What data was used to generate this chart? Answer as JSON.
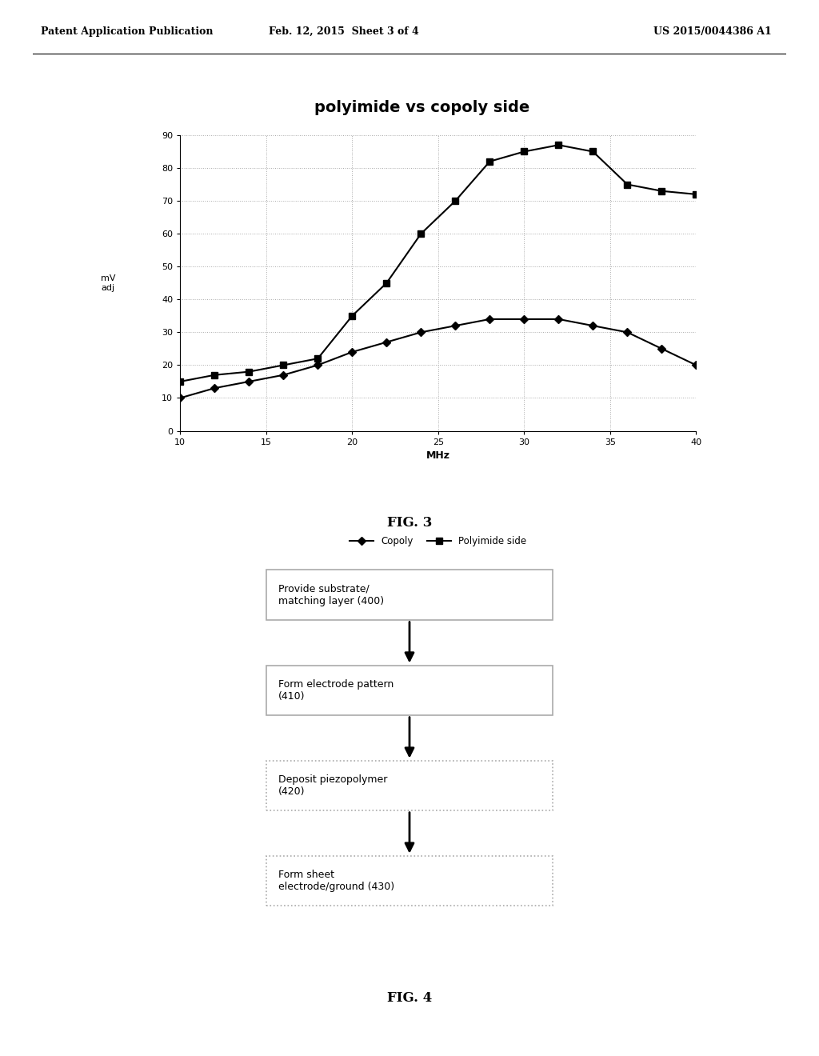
{
  "header_left": "Patent Application Publication",
  "header_center": "Feb. 12, 2015  Sheet 3 of 4",
  "header_right": "US 2015/0044386 A1",
  "chart_title": "polyimide vs copoly side",
  "xlabel": "MHz",
  "ylabel_line1": "mV",
  "ylabel_line2": "adj",
  "x_copoly": [
    10,
    12,
    14,
    16,
    18,
    20,
    22,
    24,
    26,
    28,
    30,
    32,
    34,
    36,
    38,
    40
  ],
  "y_copoly": [
    10,
    13,
    15,
    17,
    20,
    24,
    27,
    30,
    32,
    34,
    34,
    34,
    32,
    30,
    25,
    20
  ],
  "x_polyimide": [
    10,
    12,
    14,
    16,
    18,
    20,
    22,
    24,
    26,
    28,
    30,
    32,
    34,
    36,
    38,
    40
  ],
  "y_polyimide": [
    15,
    17,
    18,
    20,
    22,
    35,
    45,
    60,
    70,
    82,
    85,
    87,
    85,
    75,
    73,
    72
  ],
  "xlim": [
    10,
    40
  ],
  "xticks": [
    10,
    15,
    20,
    25,
    30,
    35,
    40
  ],
  "ylim": [
    0.0,
    90.0
  ],
  "yticks": [
    0.0,
    10.0,
    20.0,
    30.0,
    40.0,
    50.0,
    60.0,
    70.0,
    80.0,
    90.0
  ],
  "legend_copoly": "Copoly",
  "legend_polyimide": "Polyimide side",
  "fig3_label": "FIG. 3",
  "fig4_label": "FIG. 4",
  "flowchart_boxes": [
    "Provide substrate/\nmatching layer (400)",
    "Form electrode pattern\n(410)",
    "Deposit piezopolymer\n(420)",
    "Form sheet\nelectrode/ground (430)"
  ],
  "background_color": "#ffffff",
  "chart_bg": "#ffffff",
  "line_color": "#000000",
  "grid_color": "#aaaaaa",
  "box_border_color": "#aaaaaa",
  "arrow_color": "#000000"
}
